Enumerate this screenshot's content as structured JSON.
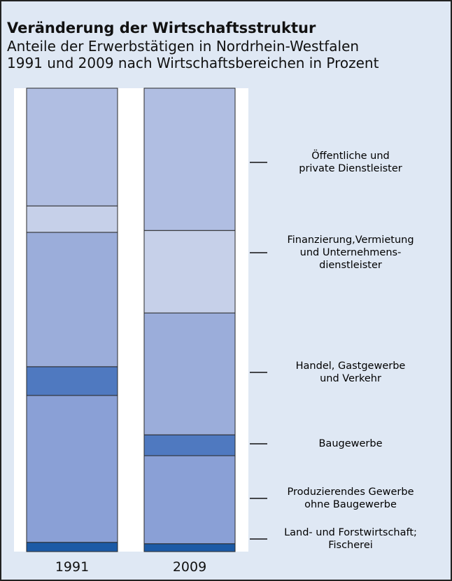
{
  "chart_data": {
    "type": "stacked_bar",
    "title": "Veränderung der Wirtschaftsstruktur",
    "subtitle": "Anteile der Erwerbstätigen in Nordrhein-Westfalen\n1991 und 2009 nach Wirtschaftsbereichen in Prozent",
    "categories": [
      "1991",
      "2009"
    ],
    "ylim": [
      0,
      100
    ],
    "series": [
      {
        "name": "Land- und Forstwirtschaft;\nFischerei",
        "color": "#1c5aa6",
        "values": [
          2,
          1.7
        ]
      },
      {
        "name": "Produzierendes Gewerbe\nohne Baugewerbe",
        "color": "#8aa0d6",
        "values": [
          31.7,
          19
        ]
      },
      {
        "name": "Baugewerbe",
        "color": "#4f79c0",
        "values": [
          6.2,
          4.5
        ]
      },
      {
        "name": "Handel, Gastgewerbe\nund Verkehr",
        "color": "#9badda",
        "values": [
          29,
          26.3
        ]
      },
      {
        "name": "Finanzierung,Vermietung\nund Unternehmens-\ndienstleister",
        "color": "#c6d0e9",
        "values": [
          5.7,
          17.8
        ]
      },
      {
        "name": "Öffentliche und\nprivate Dienstleister",
        "color": "#b0bee2",
        "values": [
          25.4,
          30.7
        ]
      }
    ]
  }
}
